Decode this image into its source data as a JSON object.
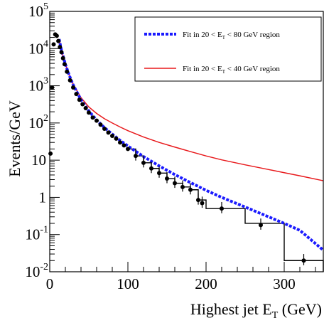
{
  "chart_data": {
    "type": "line",
    "xlabel": "Highest jet",
    "xlabel_sub": "T",
    "xlabel_letter": "E",
    "xlabel_unit": "(GeV)",
    "ylabel": "Events/GeV",
    "xlim": [
      0,
      350
    ],
    "ylim_log10": [
      -2,
      5
    ],
    "y_scale": "log",
    "x_ticks": [
      "0",
      "100",
      "200",
      "300"
    ],
    "y_ticks": [
      {
        "base": "10",
        "exp": "-2"
      },
      {
        "base": "10",
        "exp": "-1"
      },
      {
        "base": "1",
        "exp": ""
      },
      {
        "base": "10",
        "exp": ""
      },
      {
        "base": "10",
        "exp": "2"
      },
      {
        "base": "10",
        "exp": "3"
      },
      {
        "base": "10",
        "exp": "4"
      },
      {
        "base": "10",
        "exp": "5"
      }
    ],
    "legend": {
      "position": "top-right",
      "entries": [
        {
          "text_pre": "Fit in 20 < E",
          "sub": "T",
          "text_post": " < 80 GeV region",
          "color": "#1a1aff",
          "style": "dotted"
        },
        {
          "text_pre": "Fit in 20 < E",
          "sub": "T",
          "text_post": " < 40 GeV region",
          "color": "#e8191c",
          "style": "solid"
        }
      ]
    },
    "data_points": {
      "x": [
        1,
        3,
        5,
        7,
        9,
        11,
        13,
        15,
        17,
        19,
        22,
        26,
        30,
        34,
        38,
        42,
        46,
        50,
        55,
        60,
        65,
        70,
        75,
        80,
        85,
        90,
        95,
        100,
        110,
        120,
        130,
        140,
        150,
        160,
        170,
        180,
        190,
        195,
        220,
        270,
        325
      ],
      "y": [
        15,
        900,
        13000,
        24000,
        22000,
        16000,
        11000,
        8000,
        5500,
        3800,
        2400,
        1400,
        900,
        600,
        420,
        320,
        250,
        190,
        140,
        115,
        90,
        70,
        55,
        45,
        38,
        30,
        25,
        20,
        13,
        8.5,
        6,
        4.5,
        3.2,
        2.4,
        1.9,
        1.6,
        0.85,
        0.7,
        0.5,
        0.18,
        0.02
      ]
    },
    "histogram": {
      "edges": [
        100,
        110,
        120,
        130,
        140,
        150,
        160,
        170,
        180,
        190,
        200,
        250,
        300,
        350
      ],
      "values": [
        20,
        13,
        8.5,
        6,
        4.5,
        3.2,
        2.4,
        1.9,
        1.6,
        0.85,
        0.5,
        0.2,
        0.02
      ]
    },
    "series": [
      {
        "color": "#1a1aff",
        "x": [
          12,
          15,
          20,
          25,
          30,
          40,
          50,
          60,
          70,
          80,
          90,
          100,
          120,
          140,
          160,
          180,
          200,
          220,
          250,
          280,
          300,
          320,
          350
        ],
        "y": [
          18000,
          9000,
          3800,
          1900,
          1050,
          420,
          210,
          120,
          75,
          50,
          34,
          24,
          12.5,
          7,
          4.1,
          2.5,
          1.55,
          1.0,
          0.55,
          0.3,
          0.2,
          0.13,
          0.038
        ]
      },
      {
        "color": "#e8191c",
        "x": [
          12,
          15,
          20,
          25,
          30,
          40,
          50,
          60,
          70,
          80,
          90,
          100,
          120,
          140,
          160,
          180,
          200,
          220,
          250,
          280,
          300,
          320,
          350
        ],
        "y": [
          18000,
          9000,
          3800,
          1900,
          1100,
          480,
          270,
          180,
          130,
          100,
          78,
          62,
          42,
          30,
          22.5,
          17,
          13,
          10.2,
          7.5,
          5.6,
          4.6,
          3.8,
          2.8
        ]
      }
    ]
  }
}
